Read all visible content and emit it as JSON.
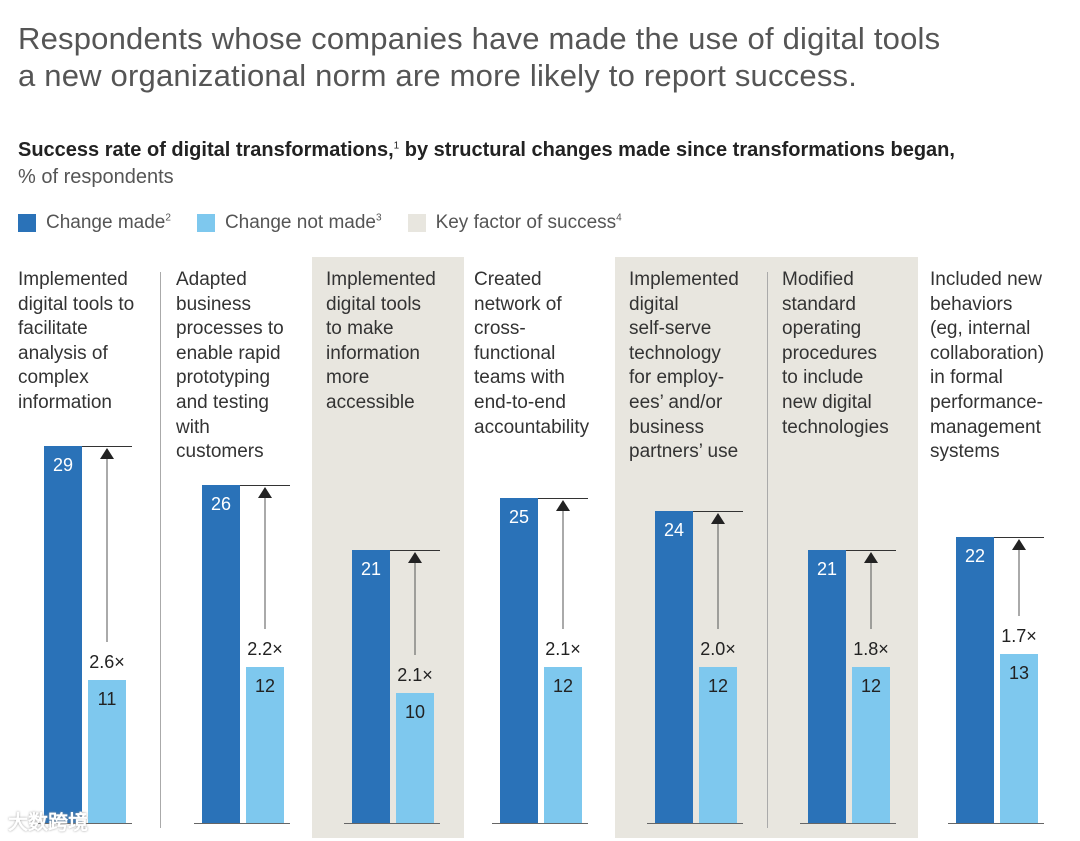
{
  "headline": "Respondents whose companies have made the use of digital tools\na new organizational norm are more likely to report success.",
  "subtitle": "Success rate of digital transformations,",
  "subtitle_sup": "1",
  "subtitle_rest": " by structural changes made since transformations began,",
  "unit": "% of respondents",
  "legend": [
    {
      "label": "Change made",
      "sup": "2",
      "color": "#2a72b8"
    },
    {
      "label": "Change not made",
      "sup": "3",
      "color": "#7ec8ee"
    },
    {
      "label": "Key factor of success",
      "sup": "4",
      "color": "#e8e6df"
    }
  ],
  "watermark": "大数跨境",
  "chart_data": {
    "type": "bar",
    "title": "Success rate of digital transformations, by structural changes made since transformations began",
    "ylabel": "% of respondents",
    "ylim": [
      0,
      29
    ],
    "categories": [
      "Implemented\ndigital tools to\nfacilitate\nanalysis of\ncomplex\ninformation",
      "Adapted\nbusiness\nprocesses to\nenable rapid\nprototyping\nand testing\nwith\ncustomers",
      "Implemented\ndigital tools\nto make\ninformation\nmore\naccessible",
      "Created\nnetwork of\ncross-\nfunctional\nteams with\nend-to-end\naccountability",
      "Implemented\ndigital\nself-serve\ntechnology\nfor employ-\nees’ and/or\nbusiness\npartners’ use",
      "Modified\nstandard\noperating\nprocedures\nto include\nnew digital\ntechnologies",
      "Included new\nbehaviors\n(eg, internal\ncollaboration)\nin formal\nperformance-\nmanagement\nsystems"
    ],
    "series": [
      {
        "name": "Change made",
        "values": [
          29,
          26,
          21,
          25,
          24,
          21,
          22
        ]
      },
      {
        "name": "Change not made",
        "values": [
          11,
          12,
          10,
          12,
          12,
          12,
          13
        ]
      }
    ],
    "multipliers": [
      "2.6×",
      "2.2×",
      "2.1×",
      "2.1×",
      "2.0×",
      "1.8×",
      "1.7×"
    ],
    "key_factor": [
      false,
      false,
      true,
      false,
      true,
      true,
      false
    ]
  }
}
